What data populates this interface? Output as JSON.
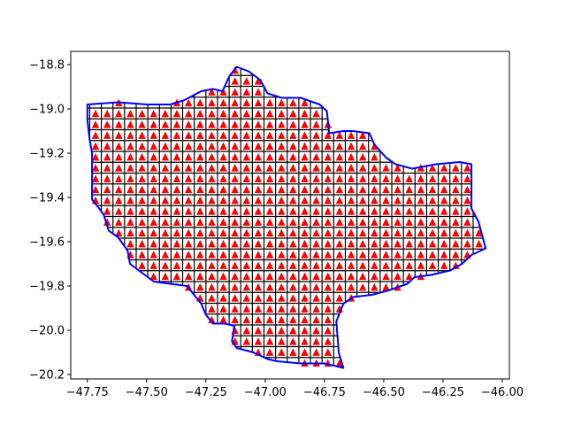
{
  "chart_data": {
    "type": "scatter",
    "title": "",
    "xlabel": "",
    "ylabel": "",
    "xlim": [
      -47.82,
      -45.97
    ],
    "ylim": [
      -20.22,
      -18.74
    ],
    "grid": false,
    "legend": "none",
    "colors": {
      "boundary": "#0000ff",
      "marker": "#ff0000",
      "grid_line": "#000000"
    },
    "x_ticks": [
      {
        "value": -47.75,
        "label": "−47.75"
      },
      {
        "value": -47.5,
        "label": "−47.50"
      },
      {
        "value": -47.25,
        "label": "−47.25"
      },
      {
        "value": -47.0,
        "label": "−47.00"
      },
      {
        "value": -46.75,
        "label": "−46.75"
      },
      {
        "value": -46.5,
        "label": "−46.50"
      },
      {
        "value": -46.25,
        "label": "−46.25"
      },
      {
        "value": -46.0,
        "label": "−46.00"
      }
    ],
    "y_ticks": [
      {
        "value": -18.8,
        "label": "−18.8"
      },
      {
        "value": -19.0,
        "label": "−19.0"
      },
      {
        "value": -19.2,
        "label": "−19.2"
      },
      {
        "value": -19.4,
        "label": "−19.4"
      },
      {
        "value": -19.6,
        "label": "−19.6"
      },
      {
        "value": -19.8,
        "label": "−19.8"
      },
      {
        "value": -20.0,
        "label": "−20.0"
      },
      {
        "value": -20.2,
        "label": "−20.2"
      }
    ],
    "grid_cells": {
      "x_start": -47.74,
      "x_step": 0.049,
      "x_count": 34,
      "y_start": -18.8,
      "y_step": 0.049,
      "y_count": 28
    },
    "boundary": [
      [
        -47.75,
        -18.98
      ],
      [
        -47.62,
        -18.97
      ],
      [
        -47.5,
        -18.98
      ],
      [
        -47.4,
        -18.98
      ],
      [
        -47.34,
        -18.96
      ],
      [
        -47.27,
        -18.92
      ],
      [
        -47.22,
        -18.91
      ],
      [
        -47.18,
        -18.92
      ],
      [
        -47.15,
        -18.85
      ],
      [
        -47.12,
        -18.81
      ],
      [
        -47.07,
        -18.83
      ],
      [
        -47.02,
        -18.87
      ],
      [
        -46.99,
        -18.93
      ],
      [
        -46.93,
        -18.95
      ],
      [
        -46.85,
        -18.95
      ],
      [
        -46.77,
        -18.98
      ],
      [
        -46.74,
        -19.01
      ],
      [
        -46.73,
        -19.11
      ],
      [
        -46.67,
        -19.1
      ],
      [
        -46.63,
        -19.1
      ],
      [
        -46.56,
        -19.11
      ],
      [
        -46.54,
        -19.16
      ],
      [
        -46.49,
        -19.22
      ],
      [
        -46.45,
        -19.25
      ],
      [
        -46.38,
        -19.27
      ],
      [
        -46.28,
        -19.25
      ],
      [
        -46.18,
        -19.24
      ],
      [
        -46.13,
        -19.25
      ],
      [
        -46.13,
        -19.45
      ],
      [
        -46.1,
        -19.51
      ],
      [
        -46.07,
        -19.63
      ],
      [
        -46.13,
        -19.66
      ],
      [
        -46.17,
        -19.7
      ],
      [
        -46.22,
        -19.73
      ],
      [
        -46.3,
        -19.75
      ],
      [
        -46.37,
        -19.76
      ],
      [
        -46.4,
        -19.79
      ],
      [
        -46.48,
        -19.82
      ],
      [
        -46.55,
        -19.84
      ],
      [
        -46.63,
        -19.85
      ],
      [
        -46.67,
        -19.88
      ],
      [
        -46.7,
        -19.96
      ],
      [
        -46.69,
        -20.1
      ],
      [
        -46.67,
        -20.17
      ],
      [
        -46.75,
        -20.15
      ],
      [
        -46.85,
        -20.15
      ],
      [
        -46.95,
        -20.14
      ],
      [
        -46.99,
        -20.13
      ],
      [
        -47.05,
        -20.1
      ],
      [
        -47.12,
        -20.08
      ],
      [
        -47.14,
        -20.05
      ],
      [
        -47.13,
        -19.98
      ],
      [
        -47.17,
        -19.97
      ],
      [
        -47.22,
        -19.97
      ],
      [
        -47.25,
        -19.93
      ],
      [
        -47.27,
        -19.88
      ],
      [
        -47.3,
        -19.84
      ],
      [
        -47.33,
        -19.8
      ],
      [
        -47.4,
        -19.79
      ],
      [
        -47.47,
        -19.78
      ],
      [
        -47.52,
        -19.74
      ],
      [
        -47.57,
        -19.7
      ],
      [
        -47.58,
        -19.64
      ],
      [
        -47.62,
        -19.58
      ],
      [
        -47.66,
        -19.55
      ],
      [
        -47.68,
        -19.48
      ],
      [
        -47.7,
        -19.45
      ],
      [
        -47.73,
        -19.41
      ],
      [
        -47.73,
        -19.3
      ],
      [
        -47.73,
        -19.2
      ],
      [
        -47.74,
        -19.14
      ],
      [
        -47.75,
        -19.05
      ],
      [
        -47.75,
        -18.98
      ]
    ]
  }
}
